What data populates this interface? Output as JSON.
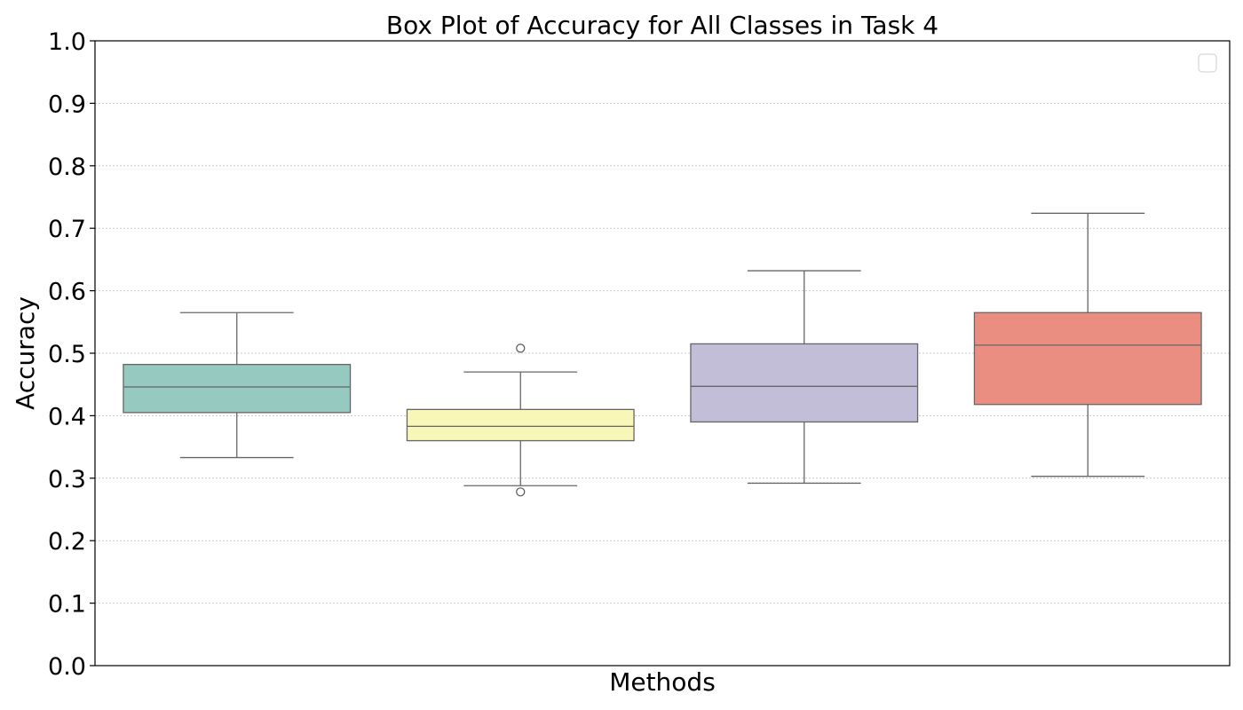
{
  "chart_data": {
    "type": "box",
    "title": "Box Plot of Accuracy for All Classes in Task 4",
    "xlabel": "Methods",
    "ylabel": "Accuracy",
    "ylim": [
      0.0,
      1.0
    ],
    "yticks": [
      "0.0",
      "0.1",
      "0.2",
      "0.3",
      "0.4",
      "0.5",
      "0.6",
      "0.7",
      "0.8",
      "0.9",
      "1.0"
    ],
    "grid": "horizontal dotted",
    "legend": "top-right (empty)",
    "boxes": [
      {
        "color": "#96c9bf",
        "whisker_low": 0.333,
        "q1": 0.405,
        "median": 0.446,
        "q3": 0.482,
        "whisker_high": 0.565,
        "outliers": []
      },
      {
        "color": "#f8f7b8",
        "whisker_low": 0.288,
        "q1": 0.36,
        "median": 0.383,
        "q3": 0.41,
        "whisker_high": 0.47,
        "outliers": [
          0.508,
          0.278
        ]
      },
      {
        "color": "#c2bed8",
        "whisker_low": 0.292,
        "q1": 0.39,
        "median": 0.447,
        "q3": 0.515,
        "whisker_high": 0.632,
        "outliers": []
      },
      {
        "color": "#ea8e82",
        "whisker_low": 0.303,
        "q1": 0.418,
        "median": 0.513,
        "q3": 0.565,
        "whisker_high": 0.724,
        "outliers": []
      }
    ]
  }
}
